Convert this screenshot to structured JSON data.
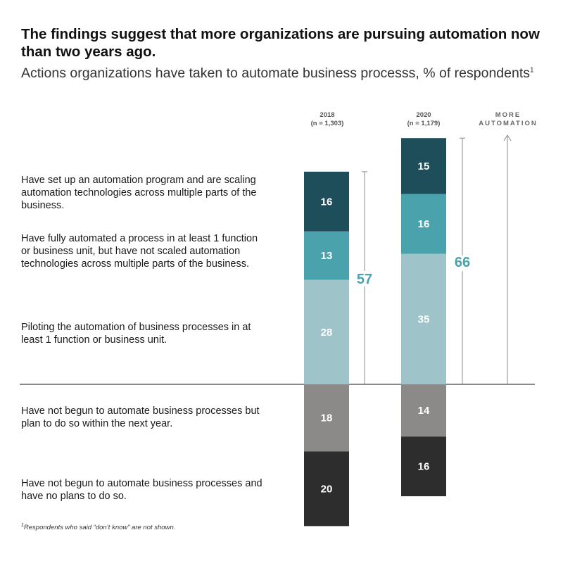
{
  "title": "The findings suggest that more organizations are pursuing automation now than two years ago.",
  "subtitle": "Actions organizations have taken to automate business processs, % of respondents",
  "subtitle_footnote_mark": "1",
  "more_automation_label": "MORE AUTOMATION",
  "footnote": {
    "mark": "1",
    "text": "Respondents who said “don’t know” are not shown."
  },
  "row_labels": [
    "Have set up an automation program and are scaling automation technologies across multiple parts of the business.",
    "Have fully automated a process in at least 1 function or business unit, but have not scaled automation technologies across multiple parts of the business.",
    "Piloting the automation of business processes in at least 1 function or business unit.",
    "Have not begun to automate business processes but plan to do so within the next year.",
    "Have not begun to automate business processes and have no plans to do so."
  ],
  "colors": {
    "scaling": "#1f4e5b",
    "fully_automated": "#4aa2ad",
    "piloting": "#9ec4c9",
    "plan": "#8c8a88",
    "no_plans": "#2d2d2d",
    "total_label": "#4aa2ad"
  },
  "chart_data": {
    "type": "bar",
    "stacked": true,
    "diverging": true,
    "columns": [
      {
        "year": "2018",
        "sample": "(n = 1,303)",
        "positive_total": 57,
        "values": [
          16,
          13,
          28,
          18,
          20
        ]
      },
      {
        "year": "2020",
        "sample": "(n = 1,179)",
        "positive_total": 66,
        "values": [
          15,
          16,
          35,
          14,
          16
        ]
      }
    ]
  }
}
